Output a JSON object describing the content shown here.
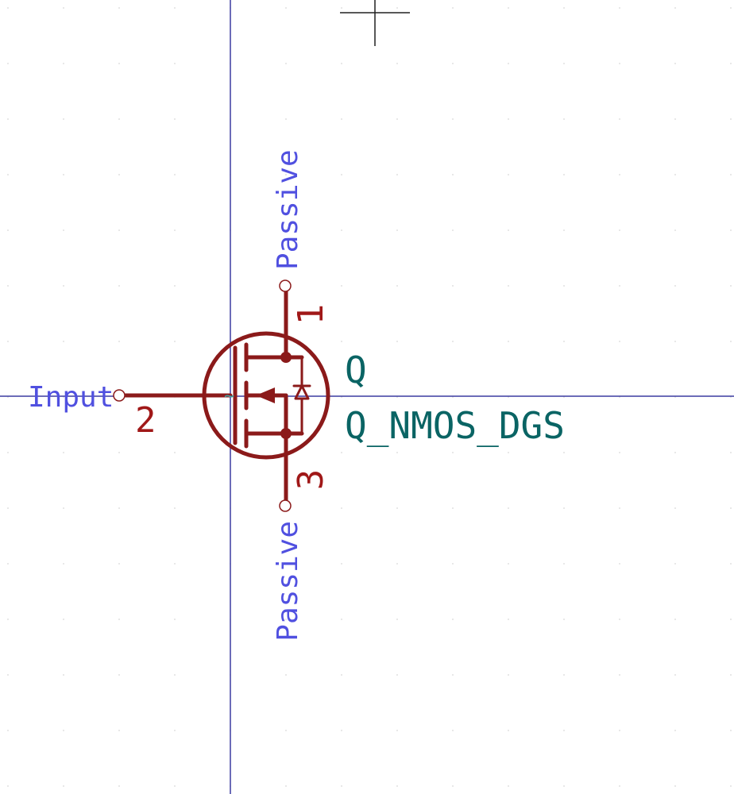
{
  "symbol": {
    "reference": "Q",
    "value": "Q_NMOS_DGS"
  },
  "pins": {
    "drain": {
      "number": "1",
      "type": "Passive"
    },
    "gate": {
      "number": "2",
      "type": "Input"
    },
    "source": {
      "number": "3",
      "type": "Passive"
    }
  },
  "colors": {
    "background": "#ffffff",
    "grid_dot": "#d8d8d8",
    "axis": "#3c3ca0",
    "body": "#8b1a1a",
    "pin_number": "#a01818",
    "pin_type": "#5050e0",
    "field": "#0a6464",
    "cursor": "#202020",
    "pin_tilde": "#40a0a0"
  }
}
